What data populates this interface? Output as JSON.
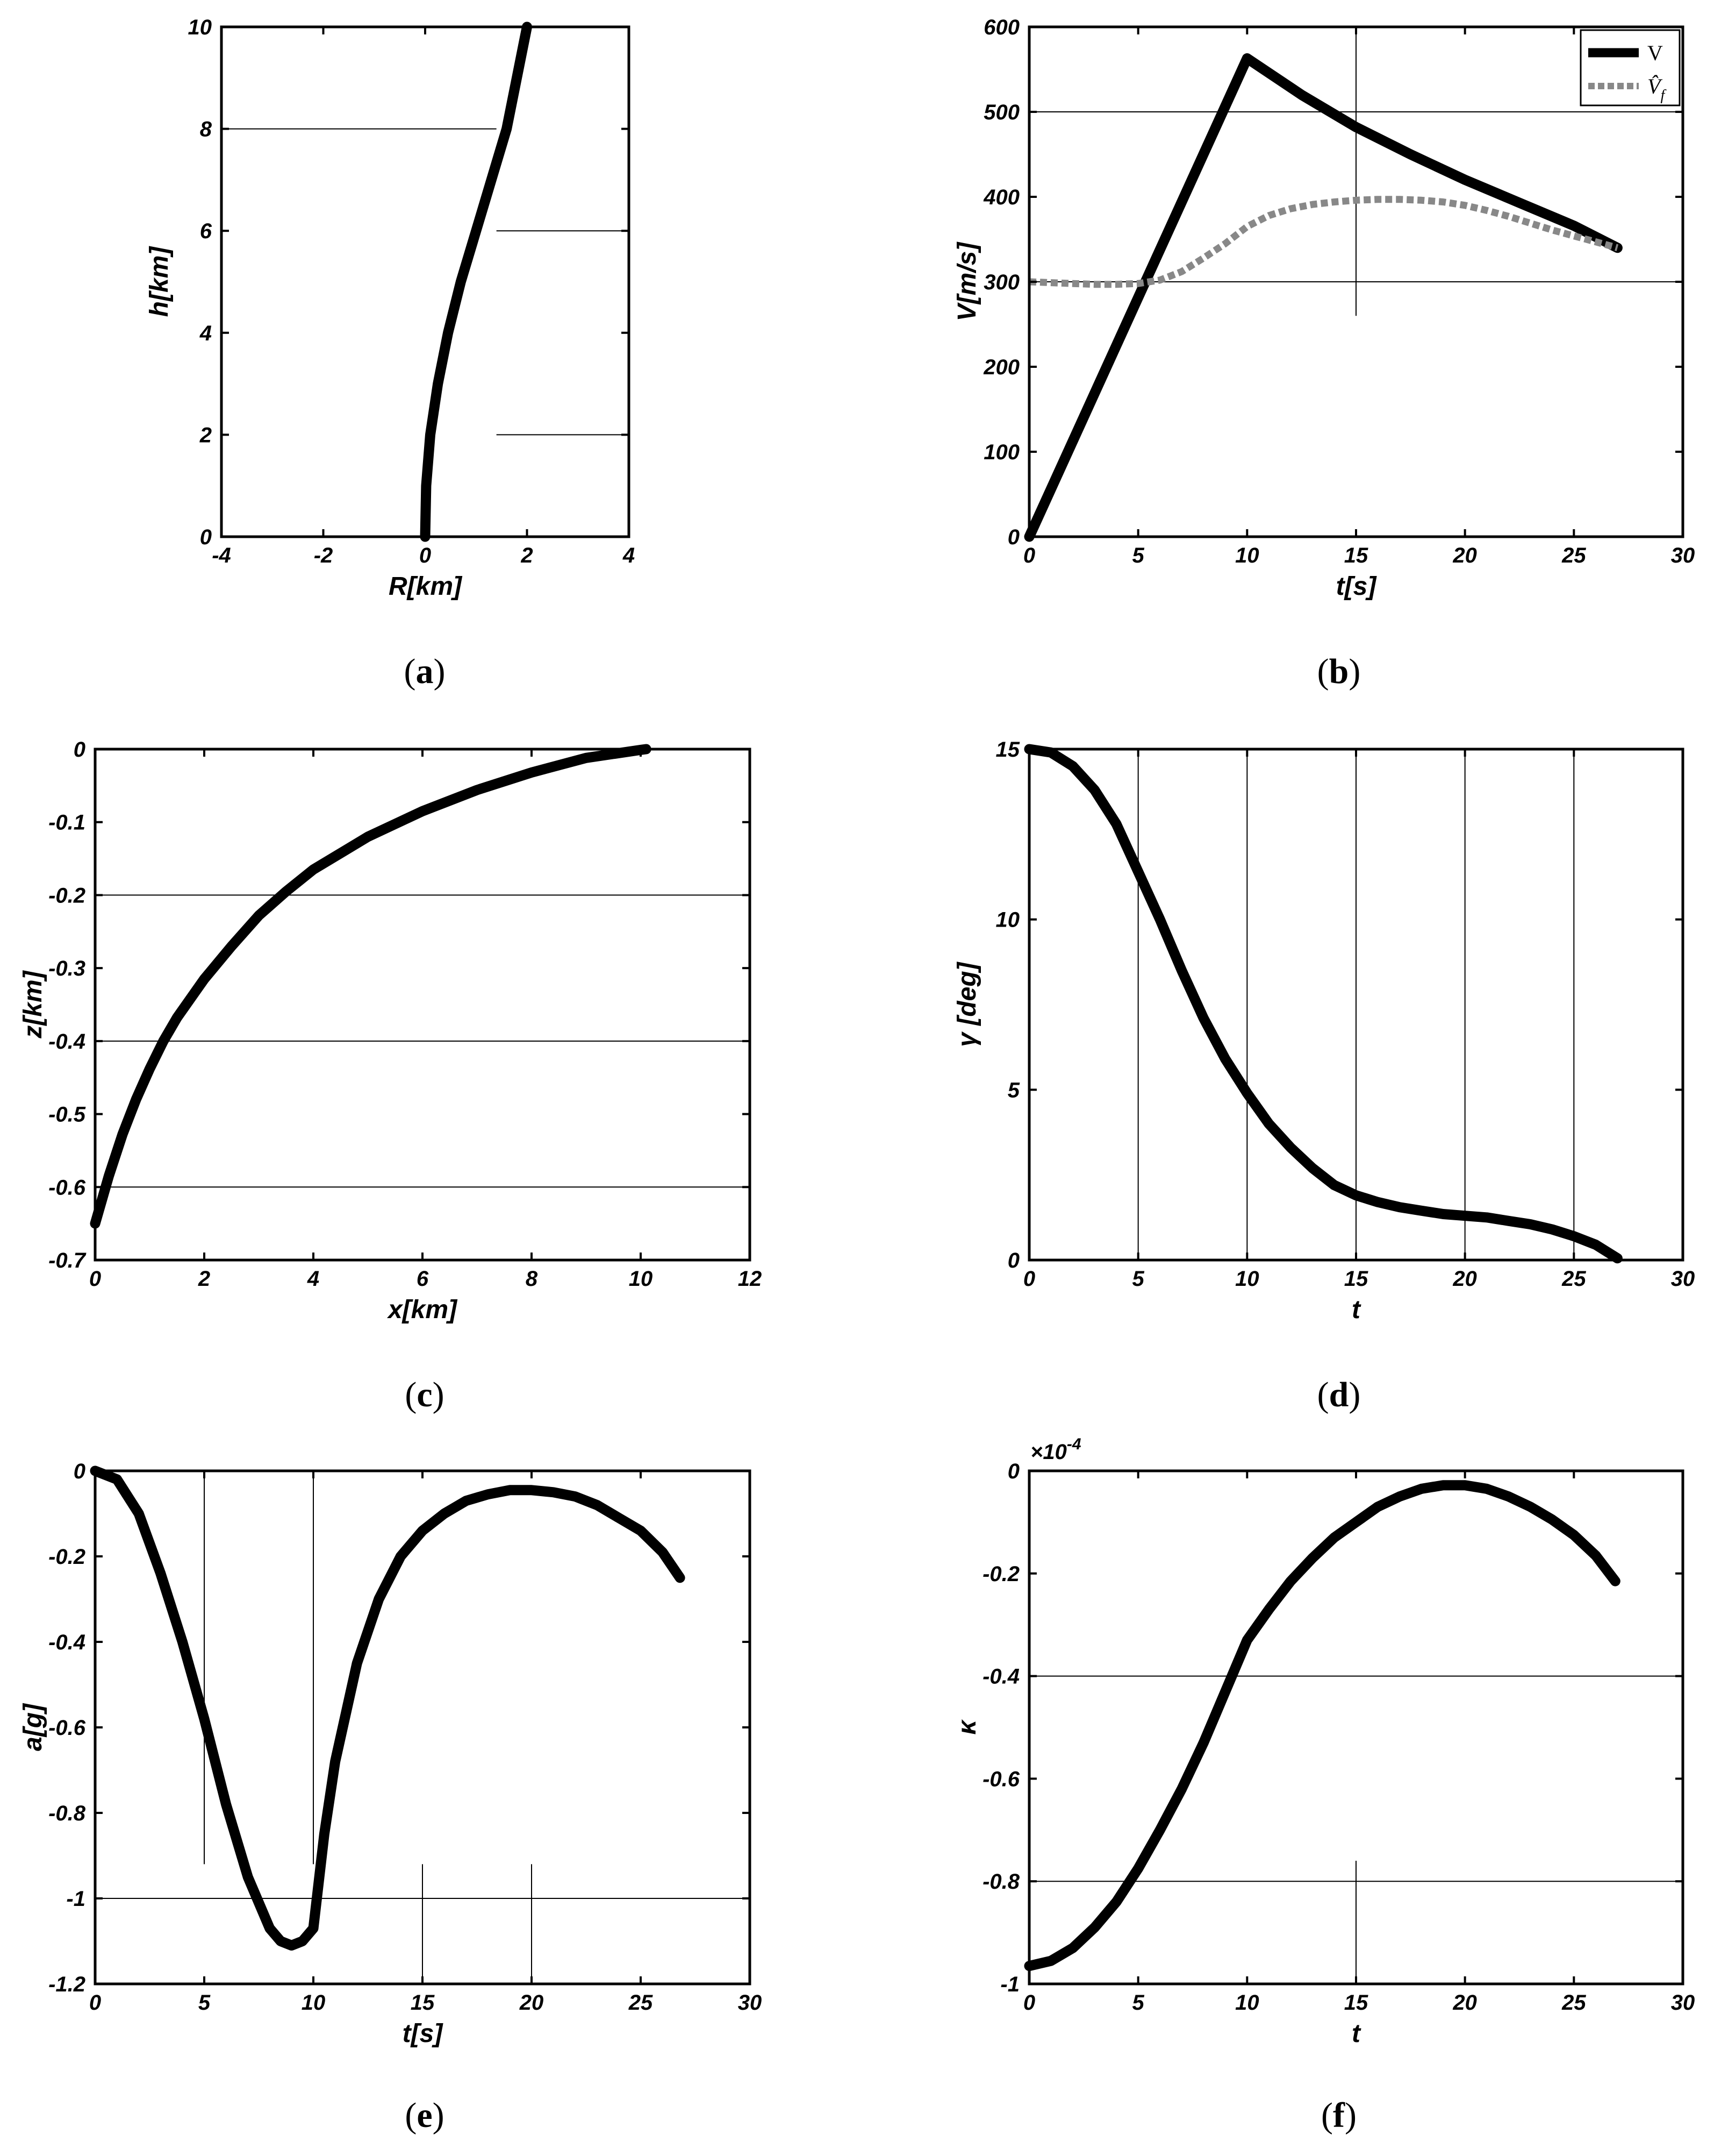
{
  "chart_data": [
    {
      "id": "a",
      "type": "line",
      "caption": "(a)",
      "xlabel": "R[km]",
      "ylabel": "h[km]",
      "xlim": [
        -4,
        4
      ],
      "ylim": [
        0,
        10
      ],
      "xticks": [
        -4,
        -2,
        0,
        2,
        4
      ],
      "xtick_labels": [
        "-4",
        "-2",
        "0",
        "2",
        "4"
      ],
      "yticks": [
        0,
        2,
        4,
        6,
        8,
        10
      ],
      "ytick_labels": [
        "0",
        "2",
        "4",
        "6",
        "8",
        "10"
      ],
      "grid_h": [
        [
          8,
          -4,
          1.4
        ],
        [
          6,
          1.4,
          4
        ],
        [
          2,
          1.4,
          4
        ]
      ],
      "grid_v": [],
      "series": [
        {
          "name": "trajectory",
          "color": "#000000",
          "dash": false,
          "x": [
            0,
            0.02,
            0.1,
            0.25,
            0.45,
            0.7,
            1.0,
            1.3,
            1.6,
            2.0
          ],
          "y": [
            0,
            1,
            2,
            3,
            4,
            5,
            6,
            7,
            8,
            10
          ]
        }
      ]
    },
    {
      "id": "b",
      "type": "line",
      "caption": "(b)",
      "xlabel": "t[s]",
      "ylabel": "V[m/s]",
      "xlim": [
        0,
        30
      ],
      "ylim": [
        0,
        600
      ],
      "xticks": [
        0,
        5,
        10,
        15,
        20,
        25,
        30
      ],
      "xtick_labels": [
        "0",
        "5",
        "10",
        "15",
        "20",
        "25",
        "30"
      ],
      "yticks": [
        0,
        100,
        200,
        300,
        400,
        500,
        600
      ],
      "ytick_labels": [
        "0",
        "100",
        "200",
        "300",
        "400",
        "500",
        "600"
      ],
      "grid_h": [
        [
          500,
          0,
          30
        ],
        [
          300,
          0,
          30
        ]
      ],
      "grid_v": [
        [
          15,
          260,
          600
        ]
      ],
      "legend": [
        {
          "label": "V",
          "color": "#000000",
          "dash": false
        },
        {
          "label": "V̂",
          "sub": "f",
          "color": "#888888",
          "dash": true
        }
      ],
      "series": [
        {
          "name": "V",
          "color": "#000000",
          "dash": false,
          "x": [
            0,
            10,
            12.5,
            15,
            17.5,
            20,
            22.5,
            25,
            27
          ],
          "y": [
            0,
            563,
            520,
            482,
            450,
            420,
            393,
            366,
            340
          ]
        },
        {
          "name": "V̂f",
          "color": "#888888",
          "dash": true,
          "x": [
            0,
            1,
            2,
            3,
            4,
            5,
            6,
            7,
            8,
            9,
            10,
            11,
            12,
            13,
            14,
            15,
            16,
            17,
            18,
            19,
            20,
            21,
            22,
            23,
            24,
            25,
            26,
            27
          ],
          "y": [
            300,
            299,
            298,
            297,
            297,
            298,
            302,
            312,
            328,
            345,
            365,
            378,
            386,
            391,
            394,
            396,
            397,
            397,
            396,
            394,
            390,
            384,
            377,
            369,
            361,
            354,
            347,
            340
          ]
        }
      ]
    },
    {
      "id": "c",
      "type": "line",
      "caption": "(c)",
      "xlabel": "x[km]",
      "ylabel": "z[km]",
      "xlim": [
        0,
        12
      ],
      "ylim": [
        -0.7,
        0
      ],
      "xticks": [
        0,
        2,
        4,
        6,
        8,
        10,
        12
      ],
      "xtick_labels": [
        "0",
        "2",
        "4",
        "6",
        "8",
        "10",
        "12"
      ],
      "yticks": [
        -0.7,
        -0.6,
        -0.5,
        -0.4,
        -0.3,
        -0.2,
        -0.1,
        0
      ],
      "ytick_labels": [
        "-0.7",
        "-0.6",
        "-0.5",
        "-0.4",
        "-0.3",
        "-0.2",
        "-0.1",
        "0"
      ],
      "grid_h": [
        [
          -0.2,
          0,
          12
        ],
        [
          -0.4,
          0,
          12
        ],
        [
          -0.6,
          0,
          12
        ]
      ],
      "grid_v": [],
      "series": [
        {
          "name": "path",
          "color": "#000000",
          "dash": false,
          "x": [
            0,
            0.25,
            0.5,
            0.75,
            1,
            1.25,
            1.5,
            2,
            2.5,
            3,
            3.5,
            4,
            5,
            6,
            7,
            8,
            9,
            10,
            10.1
          ],
          "y": [
            -0.65,
            -0.585,
            -0.528,
            -0.48,
            -0.438,
            -0.4,
            -0.368,
            -0.315,
            -0.27,
            -0.228,
            -0.195,
            -0.165,
            -0.12,
            -0.085,
            -0.056,
            -0.032,
            -0.012,
            -0.001,
            0
          ]
        }
      ]
    },
    {
      "id": "d",
      "type": "line",
      "caption": "(d)",
      "xlabel": "t",
      "ylabel": "γ [deg]",
      "xlim": [
        0,
        30
      ],
      "ylim": [
        0,
        15
      ],
      "xticks": [
        0,
        5,
        10,
        15,
        20,
        25,
        30
      ],
      "xtick_labels": [
        "0",
        "5",
        "10",
        "15",
        "20",
        "25",
        "30"
      ],
      "yticks": [
        0,
        5,
        10,
        15
      ],
      "ytick_labels": [
        "0",
        "5",
        "10",
        "15"
      ],
      "grid_h": [],
      "grid_v": [
        [
          5,
          0,
          15
        ],
        [
          10,
          0,
          15
        ],
        [
          15,
          0,
          15
        ],
        [
          20,
          0,
          15
        ],
        [
          25,
          0,
          15
        ]
      ],
      "series": [
        {
          "name": "gamma",
          "color": "#000000",
          "dash": false,
          "x": [
            0,
            1,
            2,
            3,
            4,
            5,
            6,
            7,
            8,
            9,
            10,
            11,
            12,
            13,
            14,
            15,
            16,
            17,
            18,
            19,
            20,
            21,
            22,
            23,
            24,
            25,
            26,
            27
          ],
          "y": [
            15,
            14.9,
            14.5,
            13.8,
            12.8,
            11.4,
            10.0,
            8.5,
            7.1,
            5.9,
            4.9,
            4.0,
            3.3,
            2.7,
            2.2,
            1.9,
            1.7,
            1.55,
            1.45,
            1.35,
            1.3,
            1.25,
            1.15,
            1.05,
            0.9,
            0.7,
            0.45,
            0.05
          ]
        }
      ]
    },
    {
      "id": "e",
      "type": "line",
      "caption": "(e)",
      "xlabel": "t[s]",
      "ylabel": "a[g]",
      "xlim": [
        0,
        30
      ],
      "ylim": [
        -1.2,
        0
      ],
      "xticks": [
        0,
        5,
        10,
        15,
        20,
        25,
        30
      ],
      "xtick_labels": [
        "0",
        "5",
        "10",
        "15",
        "20",
        "25",
        "30"
      ],
      "yticks": [
        -1.2,
        -1,
        -0.8,
        -0.6,
        -0.4,
        -0.2,
        0
      ],
      "ytick_labels": [
        "-1.2",
        "-1",
        "-0.8",
        "-0.6",
        "-0.4",
        "-0.2",
        "0"
      ],
      "grid_h": [
        [
          -1,
          0,
          30
        ]
      ],
      "grid_v": [
        [
          5,
          -0.92,
          0
        ],
        [
          10,
          -0.92,
          0
        ],
        [
          15,
          -1.2,
          -0.92
        ],
        [
          20,
          -1.2,
          -0.92
        ]
      ],
      "series": [
        {
          "name": "accel",
          "color": "#000000",
          "dash": false,
          "x": [
            0,
            1,
            2,
            3,
            4,
            5,
            6,
            7,
            8,
            8.5,
            9,
            9.5,
            10,
            10.5,
            11,
            12,
            13,
            14,
            15,
            16,
            17,
            18,
            19,
            20,
            21,
            22,
            23,
            24,
            25,
            26,
            26.8
          ],
          "y": [
            0,
            -0.02,
            -0.1,
            -0.24,
            -0.4,
            -0.58,
            -0.78,
            -0.95,
            -1.07,
            -1.1,
            -1.11,
            -1.1,
            -1.07,
            -0.85,
            -0.68,
            -0.45,
            -0.3,
            -0.2,
            -0.14,
            -0.1,
            -0.07,
            -0.055,
            -0.045,
            -0.045,
            -0.05,
            -0.06,
            -0.08,
            -0.11,
            -0.14,
            -0.19,
            -0.25
          ]
        }
      ]
    },
    {
      "id": "f",
      "type": "line",
      "caption": "(f)",
      "xlabel": "t",
      "ylabel": "κ",
      "exponent_label": "×10",
      "exponent_power": "-4",
      "xlim": [
        0,
        30
      ],
      "ylim": [
        -1,
        0
      ],
      "xticks": [
        0,
        5,
        10,
        15,
        20,
        25,
        30
      ],
      "xtick_labels": [
        "0",
        "5",
        "10",
        "15",
        "20",
        "25",
        "30"
      ],
      "yticks": [
        -1,
        -0.8,
        -0.6,
        -0.4,
        -0.2,
        0
      ],
      "ytick_labels": [
        "-1",
        "-0.8",
        "-0.6",
        "-0.4",
        "-0.2",
        "0"
      ],
      "grid_h": [
        [
          -0.4,
          0,
          30
        ],
        [
          -0.8,
          0,
          30
        ]
      ],
      "grid_v": [
        [
          15,
          -1,
          -0.76
        ]
      ],
      "series": [
        {
          "name": "kappa",
          "color": "#000000",
          "dash": false,
          "x": [
            0,
            1,
            2,
            3,
            4,
            5,
            6,
            7,
            8,
            9,
            10,
            11,
            12,
            13,
            14,
            15,
            16,
            17,
            18,
            19,
            20,
            21,
            22,
            23,
            24,
            25,
            26,
            26.9
          ],
          "y": [
            -0.965,
            -0.955,
            -0.93,
            -0.89,
            -0.84,
            -0.775,
            -0.7,
            -0.62,
            -0.53,
            -0.43,
            -0.33,
            -0.27,
            -0.215,
            -0.17,
            -0.13,
            -0.1,
            -0.07,
            -0.05,
            -0.035,
            -0.028,
            -0.028,
            -0.035,
            -0.05,
            -0.07,
            -0.095,
            -0.125,
            -0.165,
            -0.215
          ]
        }
      ]
    }
  ]
}
